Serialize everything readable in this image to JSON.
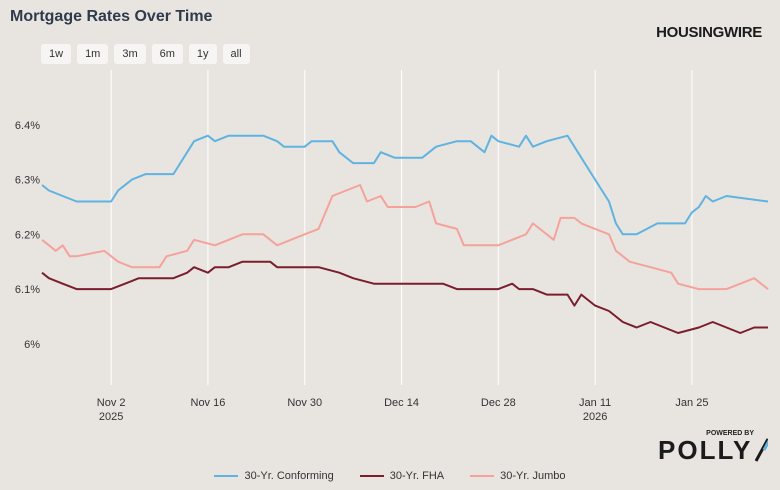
{
  "title": "Mortgage Rates Over Time",
  "brand": "HOUSINGWIRE",
  "range_buttons": [
    "1w",
    "1m",
    "3m",
    "6m",
    "1y",
    "all"
  ],
  "powered_by": "POWERED BY",
  "powered_logo": "POLLY",
  "colors": {
    "conforming": "#5fb3e0",
    "fha": "#7a1e2c",
    "jumbo": "#f5a29a",
    "grid": "#ffffff",
    "background": "#e8e5e1"
  },
  "chart_data": {
    "type": "line",
    "title": "Mortgage Rates Over Time",
    "xlabel": "",
    "ylabel": "",
    "x_range": [
      "2025-10-23",
      "2026-02-05"
    ],
    "ylim": [
      5.925,
      6.5
    ],
    "y_ticks": [
      6.0,
      6.1,
      6.2,
      6.3,
      6.4
    ],
    "y_tick_labels": [
      "6%",
      "6.1%",
      "6.2%",
      "6.3%",
      "6.4%"
    ],
    "x_ticks": [
      {
        "date": "2025-11-02",
        "label": "Nov 2",
        "sublabel": "2025"
      },
      {
        "date": "2025-11-16",
        "label": "Nov 16",
        "sublabel": ""
      },
      {
        "date": "2025-11-30",
        "label": "Nov 30",
        "sublabel": ""
      },
      {
        "date": "2025-12-14",
        "label": "Dec 14",
        "sublabel": ""
      },
      {
        "date": "2025-12-28",
        "label": "Dec 28",
        "sublabel": ""
      },
      {
        "date": "2026-01-11",
        "label": "Jan 11",
        "sublabel": "2026"
      },
      {
        "date": "2026-01-25",
        "label": "Jan 25",
        "sublabel": ""
      }
    ],
    "grid": "vertical",
    "legend_position": "bottom",
    "series": [
      {
        "name": "30-Yr. Conforming",
        "color": "#5fb3e0",
        "points": [
          [
            "2025-10-23",
            6.29
          ],
          [
            "2025-10-24",
            6.28
          ],
          [
            "2025-10-26",
            6.27
          ],
          [
            "2025-10-28",
            6.26
          ],
          [
            "2025-11-02",
            6.26
          ],
          [
            "2025-11-03",
            6.28
          ],
          [
            "2025-11-05",
            6.3
          ],
          [
            "2025-11-07",
            6.31
          ],
          [
            "2025-11-11",
            6.31
          ],
          [
            "2025-11-12",
            6.33
          ],
          [
            "2025-11-13",
            6.35
          ],
          [
            "2025-11-14",
            6.37
          ],
          [
            "2025-11-16",
            6.38
          ],
          [
            "2025-11-17",
            6.37
          ],
          [
            "2025-11-19",
            6.38
          ],
          [
            "2025-11-24",
            6.38
          ],
          [
            "2025-11-26",
            6.37
          ],
          [
            "2025-11-27",
            6.36
          ],
          [
            "2025-11-30",
            6.36
          ],
          [
            "2025-12-01",
            6.37
          ],
          [
            "2025-12-04",
            6.37
          ],
          [
            "2025-12-05",
            6.35
          ],
          [
            "2025-12-07",
            6.33
          ],
          [
            "2025-12-10",
            6.33
          ],
          [
            "2025-12-11",
            6.35
          ],
          [
            "2025-12-13",
            6.34
          ],
          [
            "2025-12-17",
            6.34
          ],
          [
            "2025-12-19",
            6.36
          ],
          [
            "2025-12-22",
            6.37
          ],
          [
            "2025-12-24",
            6.37
          ],
          [
            "2025-12-26",
            6.35
          ],
          [
            "2025-12-27",
            6.38
          ],
          [
            "2025-12-28",
            6.37
          ],
          [
            "2025-12-31",
            6.36
          ],
          [
            "2026-01-01",
            6.38
          ],
          [
            "2026-01-02",
            6.36
          ],
          [
            "2026-01-04",
            6.37
          ],
          [
            "2026-01-07",
            6.38
          ],
          [
            "2026-01-09",
            6.34
          ],
          [
            "2026-01-11",
            6.3
          ],
          [
            "2026-01-13",
            6.26
          ],
          [
            "2026-01-14",
            6.22
          ],
          [
            "2026-01-15",
            6.2
          ],
          [
            "2026-01-17",
            6.2
          ],
          [
            "2026-01-20",
            6.22
          ],
          [
            "2026-01-24",
            6.22
          ],
          [
            "2026-01-25",
            6.24
          ],
          [
            "2026-01-26",
            6.25
          ],
          [
            "2026-01-27",
            6.27
          ],
          [
            "2026-01-28",
            6.26
          ],
          [
            "2026-01-30",
            6.27
          ],
          [
            "2026-02-05",
            6.26
          ]
        ]
      },
      {
        "name": "30-Yr. FHA",
        "color": "#7a1e2c",
        "points": [
          [
            "2025-10-23",
            6.13
          ],
          [
            "2025-10-24",
            6.12
          ],
          [
            "2025-10-26",
            6.11
          ],
          [
            "2025-10-28",
            6.1
          ],
          [
            "2025-11-02",
            6.1
          ],
          [
            "2025-11-04",
            6.11
          ],
          [
            "2025-11-06",
            6.12
          ],
          [
            "2025-11-11",
            6.12
          ],
          [
            "2025-11-13",
            6.13
          ],
          [
            "2025-11-14",
            6.14
          ],
          [
            "2025-11-16",
            6.13
          ],
          [
            "2025-11-17",
            6.14
          ],
          [
            "2025-11-19",
            6.14
          ],
          [
            "2025-11-21",
            6.15
          ],
          [
            "2025-11-25",
            6.15
          ],
          [
            "2025-11-26",
            6.14
          ],
          [
            "2025-12-02",
            6.14
          ],
          [
            "2025-12-05",
            6.13
          ],
          [
            "2025-12-07",
            6.12
          ],
          [
            "2025-12-10",
            6.11
          ],
          [
            "2025-12-12",
            6.11
          ],
          [
            "2025-12-15",
            6.11
          ],
          [
            "2025-12-17",
            6.11
          ],
          [
            "2025-12-20",
            6.11
          ],
          [
            "2025-12-22",
            6.1
          ],
          [
            "2025-12-26",
            6.1
          ],
          [
            "2025-12-28",
            6.1
          ],
          [
            "2025-12-30",
            6.11
          ],
          [
            "2025-12-31",
            6.1
          ],
          [
            "2026-01-02",
            6.1
          ],
          [
            "2026-01-04",
            6.09
          ],
          [
            "2026-01-07",
            6.09
          ],
          [
            "2026-01-08",
            6.07
          ],
          [
            "2026-01-09",
            6.09
          ],
          [
            "2026-01-11",
            6.07
          ],
          [
            "2026-01-13",
            6.06
          ],
          [
            "2026-01-15",
            6.04
          ],
          [
            "2026-01-17",
            6.03
          ],
          [
            "2026-01-19",
            6.04
          ],
          [
            "2026-01-21",
            6.03
          ],
          [
            "2026-01-23",
            6.02
          ],
          [
            "2026-01-26",
            6.03
          ],
          [
            "2026-01-28",
            6.04
          ],
          [
            "2026-01-30",
            6.03
          ],
          [
            "2026-02-01",
            6.02
          ],
          [
            "2026-02-03",
            6.03
          ],
          [
            "2026-02-05",
            6.03
          ]
        ]
      },
      {
        "name": "30-Yr. Jumbo",
        "color": "#f5a29a",
        "points": [
          [
            "2025-10-23",
            6.19
          ],
          [
            "2025-10-24",
            6.18
          ],
          [
            "2025-10-25",
            6.17
          ],
          [
            "2025-10-26",
            6.18
          ],
          [
            "2025-10-27",
            6.16
          ],
          [
            "2025-10-28",
            6.16
          ],
          [
            "2025-11-01",
            6.17
          ],
          [
            "2025-11-03",
            6.15
          ],
          [
            "2025-11-05",
            6.14
          ],
          [
            "2025-11-09",
            6.14
          ],
          [
            "2025-11-10",
            6.16
          ],
          [
            "2025-11-13",
            6.17
          ],
          [
            "2025-11-14",
            6.19
          ],
          [
            "2025-11-17",
            6.18
          ],
          [
            "2025-11-19",
            6.19
          ],
          [
            "2025-11-21",
            6.2
          ],
          [
            "2025-11-24",
            6.2
          ],
          [
            "2025-11-26",
            6.18
          ],
          [
            "2025-11-28",
            6.19
          ],
          [
            "2025-11-30",
            6.2
          ],
          [
            "2025-12-02",
            6.21
          ],
          [
            "2025-12-03",
            6.24
          ],
          [
            "2025-12-04",
            6.27
          ],
          [
            "2025-12-06",
            6.28
          ],
          [
            "2025-12-08",
            6.29
          ],
          [
            "2025-12-09",
            6.26
          ],
          [
            "2025-12-11",
            6.27
          ],
          [
            "2025-12-12",
            6.25
          ],
          [
            "2025-12-16",
            6.25
          ],
          [
            "2025-12-18",
            6.26
          ],
          [
            "2025-12-19",
            6.22
          ],
          [
            "2025-12-22",
            6.21
          ],
          [
            "2025-12-23",
            6.18
          ],
          [
            "2025-12-28",
            6.18
          ],
          [
            "2025-12-30",
            6.19
          ],
          [
            "2026-01-01",
            6.2
          ],
          [
            "2026-01-02",
            6.22
          ],
          [
            "2026-01-05",
            6.19
          ],
          [
            "2026-01-06",
            6.23
          ],
          [
            "2026-01-08",
            6.23
          ],
          [
            "2026-01-09",
            6.22
          ],
          [
            "2026-01-11",
            6.21
          ],
          [
            "2026-01-13",
            6.2
          ],
          [
            "2026-01-14",
            6.17
          ],
          [
            "2026-01-16",
            6.15
          ],
          [
            "2026-01-19",
            6.14
          ],
          [
            "2026-01-22",
            6.13
          ],
          [
            "2026-01-23",
            6.11
          ],
          [
            "2026-01-26",
            6.1
          ],
          [
            "2026-01-28",
            6.1
          ],
          [
            "2026-01-30",
            6.1
          ],
          [
            "2026-02-01",
            6.11
          ],
          [
            "2026-02-03",
            6.12
          ],
          [
            "2026-02-04",
            6.11
          ],
          [
            "2026-02-05",
            6.1
          ]
        ]
      }
    ]
  }
}
